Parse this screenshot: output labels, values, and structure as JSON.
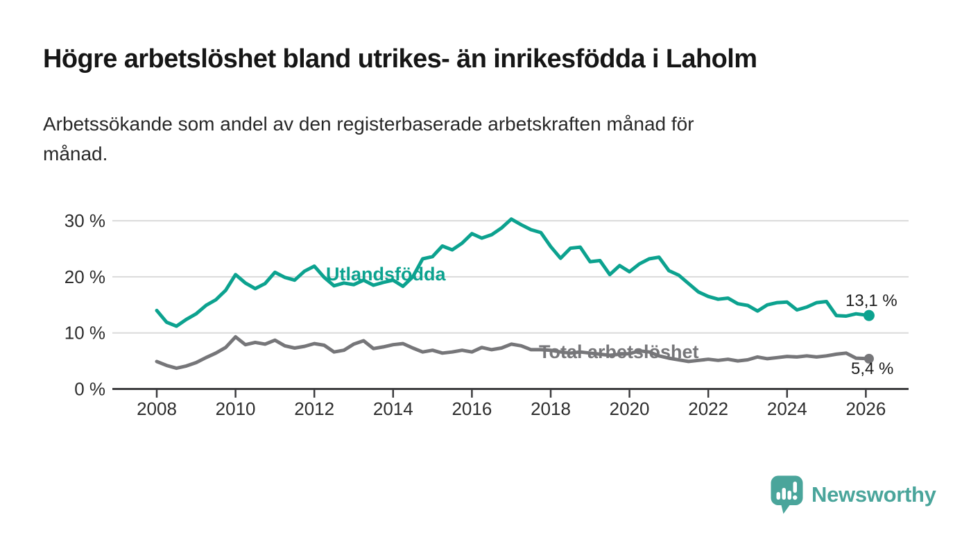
{
  "header": {
    "title": "Högre arbetslöshet bland utrikes- än inrikesfödda i Laholm",
    "subtitle": "Arbetssökande som andel av den registerbaserade arbetskraften månad för månad.",
    "subtitle_lines": [
      "Arbetssökande som andel av den registerbaserade arbetskraften månad för",
      "månad."
    ]
  },
  "chart_data": {
    "type": "line",
    "title": "Högre arbetslöshet bland utrikes- än inrikesfödda i Laholm",
    "subtitle": "Arbetssökande som andel av den registerbaserade arbetskraften månad för månad.",
    "unit": "%",
    "grid": "horizontal",
    "legend_position": "inline-labels",
    "xlim": [
      2007.3,
      2027.1
    ],
    "ylim": [
      0,
      32
    ],
    "yticks": [
      0,
      10,
      20,
      30
    ],
    "ytick_labels": [
      "0 %",
      "10 %",
      "20 %",
      "30 %"
    ],
    "xticks": [
      2008,
      2010,
      2012,
      2014,
      2016,
      2018,
      2020,
      2022,
      2024,
      2026
    ],
    "xtick_labels": [
      "2008",
      "2010",
      "2012",
      "2014",
      "2016",
      "2018",
      "2020",
      "2022",
      "2024",
      "2026"
    ],
    "x": [
      2008.0,
      2008.25,
      2008.5,
      2008.75,
      2009.0,
      2009.25,
      2009.5,
      2009.75,
      2010.0,
      2010.25,
      2010.5,
      2010.75,
      2011.0,
      2011.25,
      2011.5,
      2011.75,
      2012.0,
      2012.25,
      2012.5,
      2012.75,
      2013.0,
      2013.25,
      2013.5,
      2013.75,
      2014.0,
      2014.25,
      2014.5,
      2014.75,
      2015.0,
      2015.25,
      2015.5,
      2015.75,
      2016.0,
      2016.25,
      2016.5,
      2016.75,
      2017.0,
      2017.25,
      2017.5,
      2017.75,
      2018.0,
      2018.25,
      2018.5,
      2018.75,
      2019.0,
      2019.25,
      2019.5,
      2019.75,
      2020.0,
      2020.25,
      2020.5,
      2020.75,
      2021.0,
      2021.25,
      2021.5,
      2021.75,
      2022.0,
      2022.25,
      2022.5,
      2022.75,
      2023.0,
      2023.25,
      2023.5,
      2023.75,
      2024.0,
      2024.25,
      2024.5,
      2024.75,
      2025.0,
      2025.25,
      2025.5,
      2025.75,
      2026.08
    ],
    "series": [
      {
        "name": "Utlandsfödda",
        "color": "#0ca28f",
        "end_label": "13,1 %",
        "end_value": 13.1,
        "values": [
          14.0,
          11.9,
          11.2,
          12.4,
          13.4,
          14.9,
          15.9,
          17.6,
          20.4,
          18.9,
          17.9,
          18.8,
          20.8,
          19.9,
          19.4,
          21.0,
          21.9,
          19.9,
          18.4,
          18.9,
          18.6,
          19.4,
          18.5,
          19.0,
          19.4,
          18.3,
          20.0,
          23.2,
          23.6,
          25.5,
          24.8,
          26.0,
          27.7,
          26.9,
          27.5,
          28.7,
          30.3,
          29.3,
          28.4,
          27.9,
          25.4,
          23.3,
          25.1,
          25.3,
          22.7,
          22.9,
          20.4,
          22.0,
          20.9,
          22.3,
          23.2,
          23.5,
          21.1,
          20.3,
          18.8,
          17.3,
          16.5,
          16.0,
          16.2,
          15.2,
          14.9,
          13.9,
          15.0,
          15.4,
          15.5,
          14.1,
          14.6,
          15.4,
          15.6,
          13.1,
          13.0,
          13.4,
          13.1
        ]
      },
      {
        "name": "Total arbetslöshet",
        "color": "#767679",
        "end_label": "5,4 %",
        "end_value": 5.4,
        "values": [
          4.9,
          4.2,
          3.7,
          4.1,
          4.7,
          5.6,
          6.4,
          7.4,
          9.3,
          7.9,
          8.3,
          8.0,
          8.7,
          7.7,
          7.3,
          7.6,
          8.1,
          7.8,
          6.6,
          6.9,
          8.0,
          8.6,
          7.2,
          7.5,
          7.9,
          8.1,
          7.3,
          6.6,
          6.9,
          6.4,
          6.6,
          6.9,
          6.6,
          7.4,
          7.0,
          7.3,
          8.0,
          7.7,
          7.0,
          7.0,
          6.9,
          6.6,
          6.4,
          6.6,
          6.4,
          6.2,
          6.0,
          6.2,
          6.3,
          6.8,
          6.6,
          5.9,
          5.5,
          5.2,
          4.9,
          5.1,
          5.3,
          5.1,
          5.3,
          5.0,
          5.2,
          5.7,
          5.4,
          5.6,
          5.8,
          5.7,
          5.9,
          5.7,
          5.9,
          6.2,
          6.4,
          5.5,
          5.4
        ]
      }
    ]
  },
  "footer": {
    "brand": "Newsworthy",
    "logo_icon": "bar-chart-speech-bubble-icon",
    "logo_color": "#4aa59b"
  }
}
